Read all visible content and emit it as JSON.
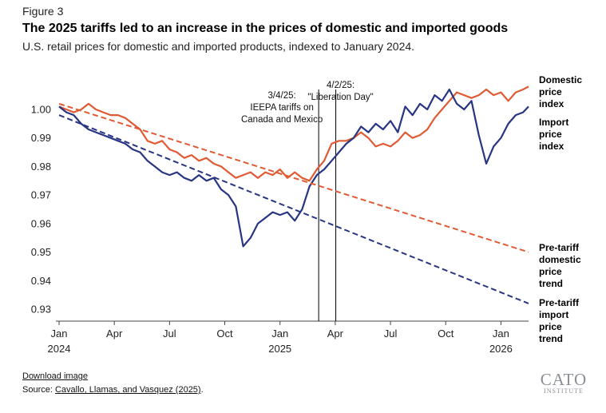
{
  "figure_label": "Figure 3",
  "title": "The 2025 tariffs led to an increase in the prices of domestic and imported goods",
  "subtitle": "U.S. retail prices for domestic and imported products, indexed to January 2024.",
  "footer": {
    "download": "Download image",
    "source_prefix": "Source: ",
    "source_link": "Cavallo, Llamas, and Vasquez (2025)",
    "source_suffix": "."
  },
  "logo": {
    "line1": "CATO",
    "line2": "INSTITUTE"
  },
  "colors": {
    "domestic": "#e05a33",
    "import": "#283582",
    "axis": "#444444",
    "vline": "#000000"
  },
  "chart_data": {
    "type": "line",
    "title": "The 2025 tariffs led to an increase in the prices of domestic and imported goods",
    "xlabel": "",
    "ylabel": "",
    "x_unit": "months since Jan 2024",
    "xlim": [
      0,
      25.5
    ],
    "ylim": [
      0.925,
      1.01
    ],
    "y_ticks": [
      0.93,
      0.94,
      0.95,
      0.96,
      0.97,
      0.98,
      0.99,
      1.0
    ],
    "y_tick_labels": [
      "0.93",
      "0.94",
      "0.95",
      "0.96",
      "0.97",
      "0.98",
      "0.99",
      "1.00"
    ],
    "x_ticks": [
      {
        "x": 0,
        "label": "Jan",
        "year": "2024"
      },
      {
        "x": 3,
        "label": "Apr",
        "year": ""
      },
      {
        "x": 6,
        "label": "Jul",
        "year": ""
      },
      {
        "x": 9,
        "label": "Oct",
        "year": ""
      },
      {
        "x": 12,
        "label": "Jan",
        "year": "2025"
      },
      {
        "x": 15,
        "label": "Apr",
        "year": ""
      },
      {
        "x": 18,
        "label": "Jul",
        "year": ""
      },
      {
        "x": 21,
        "label": "Oct",
        "year": ""
      },
      {
        "x": 24,
        "label": "Jan",
        "year": "2026"
      }
    ],
    "series": [
      {
        "name": "Domestic price index",
        "label_lines": [
          "Domestic",
          "price",
          "index"
        ],
        "color": "#e05a33",
        "x": [
          0,
          0.4,
          0.8,
          1.2,
          1.6,
          2.0,
          2.4,
          2.8,
          3.2,
          3.6,
          4.0,
          4.4,
          4.8,
          5.2,
          5.6,
          6.0,
          6.4,
          6.8,
          7.2,
          7.6,
          8.0,
          8.4,
          8.8,
          9.2,
          9.6,
          10.0,
          10.4,
          10.8,
          11.2,
          11.6,
          12.0,
          12.4,
          12.8,
          13.2,
          13.6,
          14.0,
          14.4,
          14.8,
          15.2,
          15.6,
          16.0,
          16.4,
          16.8,
          17.2,
          17.6,
          18.0,
          18.4,
          18.8,
          19.2,
          19.6,
          20.0,
          20.4,
          20.8,
          21.2,
          21.6,
          22.0,
          22.4,
          22.8,
          23.2,
          23.6,
          24.0,
          24.4,
          24.8,
          25.2,
          25.5
        ],
        "values": [
          1.001,
          1.0,
          0.999,
          1.0,
          1.002,
          1.0,
          0.999,
          0.998,
          0.998,
          0.997,
          0.995,
          0.993,
          0.989,
          0.988,
          0.989,
          0.986,
          0.985,
          0.983,
          0.984,
          0.982,
          0.983,
          0.981,
          0.98,
          0.978,
          0.976,
          0.977,
          0.978,
          0.976,
          0.978,
          0.977,
          0.979,
          0.976,
          0.978,
          0.976,
          0.975,
          0.979,
          0.982,
          0.988,
          0.989,
          0.989,
          0.99,
          0.992,
          0.99,
          0.987,
          0.988,
          0.987,
          0.989,
          0.992,
          0.99,
          0.991,
          0.993,
          0.997,
          1.0,
          1.003,
          1.006,
          1.005,
          1.004,
          1.005,
          1.007,
          1.005,
          1.006,
          1.003,
          1.006,
          1.007,
          1.008
        ]
      },
      {
        "name": "Import price index",
        "label_lines": [
          "Import",
          "price",
          "index"
        ],
        "color": "#283582",
        "x": [
          0,
          0.4,
          0.8,
          1.2,
          1.6,
          2.0,
          2.4,
          2.8,
          3.2,
          3.6,
          4.0,
          4.4,
          4.8,
          5.2,
          5.6,
          6.0,
          6.4,
          6.8,
          7.2,
          7.6,
          8.0,
          8.4,
          8.8,
          9.2,
          9.6,
          10.0,
          10.4,
          10.8,
          11.2,
          11.6,
          12.0,
          12.4,
          12.8,
          13.2,
          13.6,
          14.0,
          14.4,
          14.8,
          15.2,
          15.6,
          16.0,
          16.4,
          16.8,
          17.2,
          17.6,
          18.0,
          18.4,
          18.8,
          19.2,
          19.6,
          20.0,
          20.4,
          20.8,
          21.2,
          21.6,
          22.0,
          22.4,
          22.8,
          23.2,
          23.6,
          24.0,
          24.4,
          24.8,
          25.2,
          25.5
        ],
        "values": [
          1.001,
          0.999,
          0.998,
          0.995,
          0.993,
          0.992,
          0.991,
          0.99,
          0.989,
          0.988,
          0.986,
          0.985,
          0.982,
          0.98,
          0.978,
          0.977,
          0.978,
          0.976,
          0.975,
          0.977,
          0.975,
          0.976,
          0.972,
          0.97,
          0.966,
          0.952,
          0.955,
          0.96,
          0.962,
          0.964,
          0.963,
          0.964,
          0.961,
          0.965,
          0.973,
          0.977,
          0.979,
          0.982,
          0.985,
          0.988,
          0.99,
          0.994,
          0.992,
          0.995,
          0.993,
          0.996,
          0.992,
          1.001,
          0.998,
          1.002,
          1.0,
          1.005,
          1.003,
          1.007,
          1.002,
          1.0,
          1.003,
          0.991,
          0.981,
          0.987,
          0.99,
          0.995,
          0.998,
          0.999,
          1.001
        ]
      },
      {
        "name": "Pre-tariff domestic price trend",
        "label_lines": [
          "Pre-tariff",
          "domestic",
          "price",
          "trend"
        ],
        "color": "#e05a33",
        "dashed": true,
        "x": [
          0,
          25.5
        ],
        "values": [
          1.002,
          0.95
        ]
      },
      {
        "name": "Pre-tariff import price trend",
        "label_lines": [
          "Pre-tariff",
          "import",
          "price",
          "trend"
        ],
        "color": "#283582",
        "dashed": true,
        "x": [
          0,
          25.5
        ],
        "values": [
          0.998,
          0.932
        ]
      }
    ],
    "annotations": [
      {
        "x": 14.1,
        "lines": [
          "3/4/25:",
          "IEEPA tariffs on",
          "Canada and Mexico"
        ]
      },
      {
        "x": 15.03,
        "lines": [
          "4/2/25:",
          "\"Liberation Day\""
        ]
      }
    ]
  }
}
